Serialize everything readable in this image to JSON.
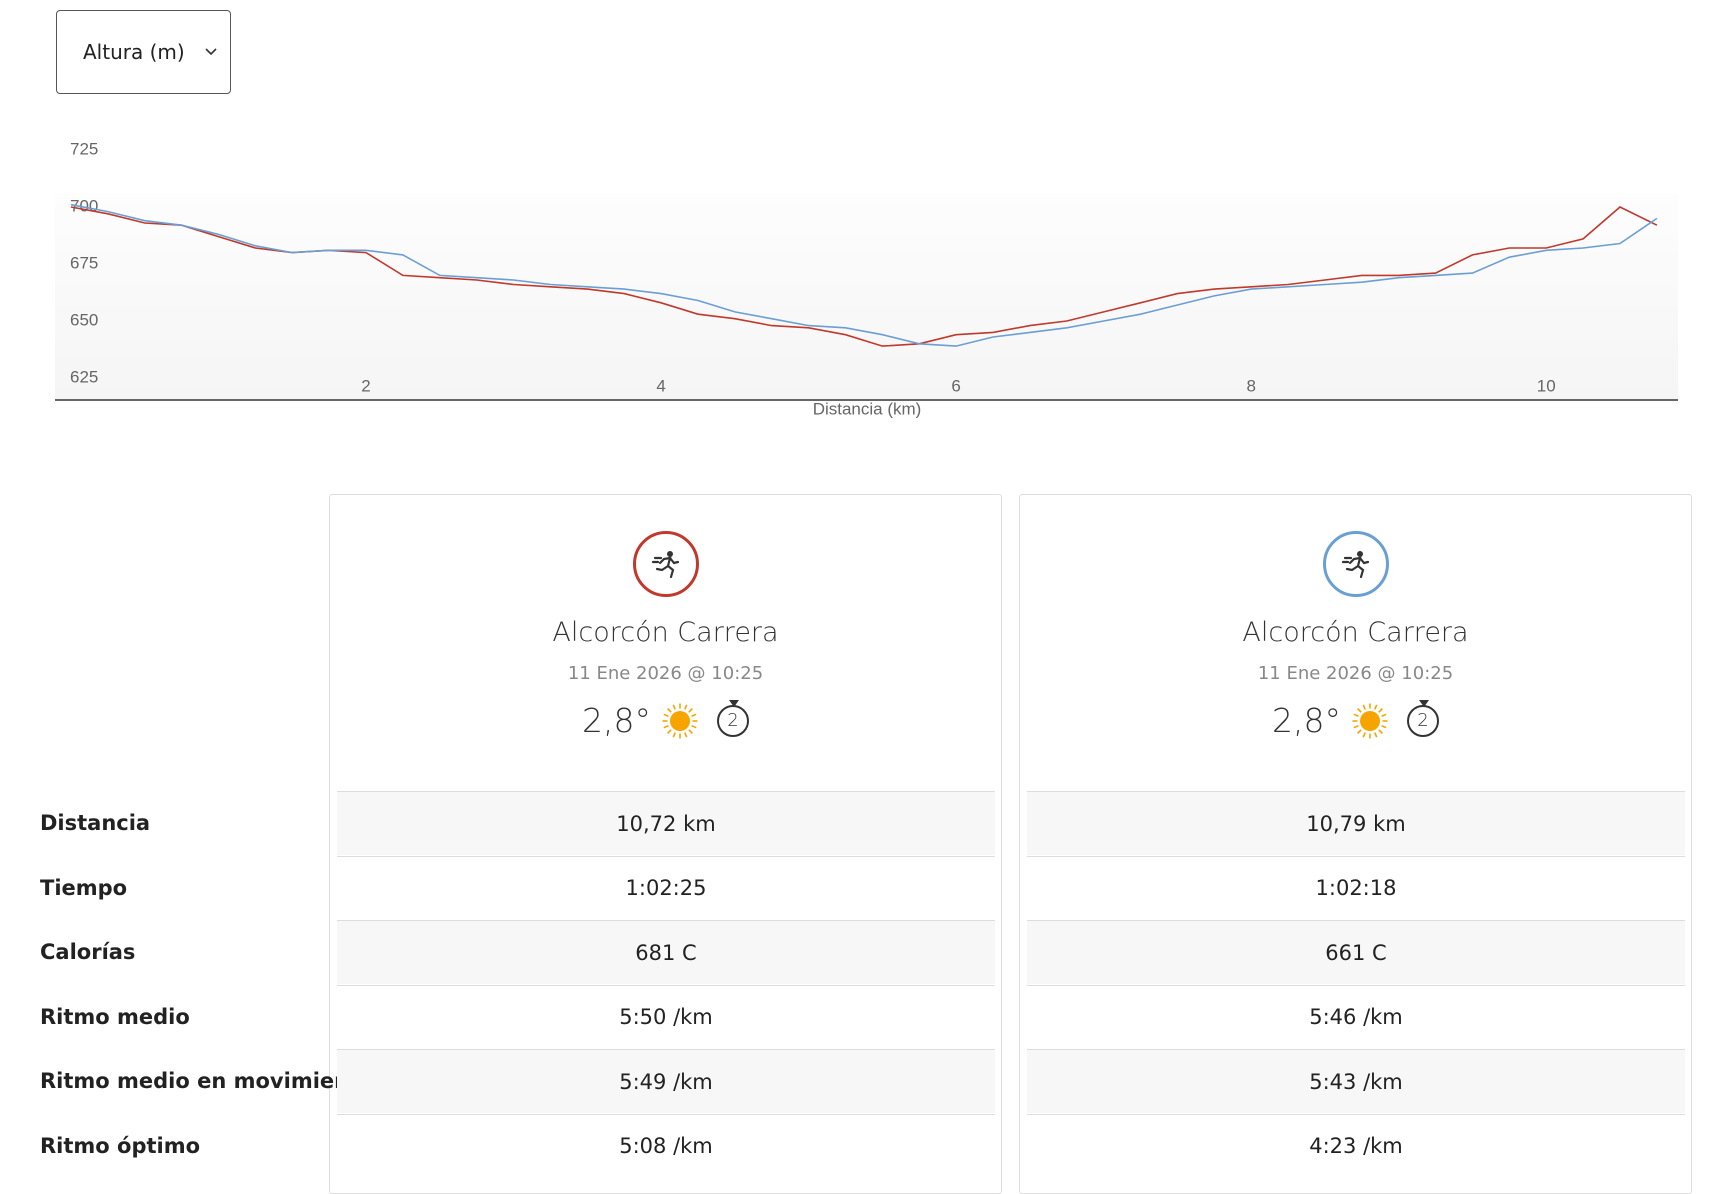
{
  "dropdown": {
    "label": "Altura (m)"
  },
  "chart_data": {
    "type": "line",
    "xlabel": "Distancia (km)",
    "x": [
      0,
      0.25,
      0.5,
      0.75,
      1,
      1.25,
      1.5,
      1.75,
      2,
      2.25,
      2.5,
      2.75,
      3,
      3.25,
      3.5,
      3.75,
      4,
      4.25,
      4.5,
      4.75,
      5,
      5.25,
      5.5,
      5.75,
      6,
      6.25,
      6.5,
      6.75,
      7,
      7.25,
      7.5,
      7.75,
      8,
      8.25,
      8.5,
      8.75,
      9,
      9.25,
      9.5,
      9.75,
      10,
      10.25,
      10.5,
      10.75
    ],
    "series": [
      {
        "color": "#c0392b",
        "values": [
          700,
          697,
          693,
          692,
          687,
          682,
          680,
          681,
          680,
          670,
          669,
          668,
          666,
          665,
          664,
          662,
          658,
          653,
          651,
          648,
          647,
          644,
          639,
          640,
          644,
          645,
          648,
          650,
          654,
          658,
          662,
          664,
          665,
          666,
          668,
          670,
          670,
          671,
          679,
          682,
          682,
          686,
          700,
          692
        ]
      },
      {
        "color": "#6a9fd4",
        "values": [
          701,
          698,
          694,
          692,
          688,
          683,
          680,
          681,
          681,
          679,
          670,
          669,
          668,
          666,
          665,
          664,
          662,
          659,
          654,
          651,
          648,
          647,
          644,
          640,
          639,
          643,
          645,
          647,
          650,
          653,
          657,
          661,
          664,
          665,
          666,
          667,
          669,
          670,
          671,
          678,
          681,
          682,
          684,
          695
        ]
      }
    ],
    "xlim": [
      0,
      10.9
    ],
    "ylim": [
      625,
      725
    ],
    "xticks": [
      2,
      4,
      6,
      8,
      10
    ],
    "yticks": [
      725,
      700,
      675,
      650,
      625
    ]
  },
  "cards": [
    {
      "title": "Alcorcón Carrera",
      "date": "11 Ene 2026 @ 10:25",
      "temperature": "2,8°",
      "laps": "2"
    },
    {
      "title": "Alcorcón Carrera",
      "date": "11 Ene 2026 @ 10:25",
      "temperature": "2,8°",
      "laps": "2"
    }
  ],
  "table": {
    "row_labels": [
      "Distancia",
      "Tiempo",
      "Calorías",
      "Ritmo medio",
      "Ritmo medio en movimiento",
      "Ritmo óptimo"
    ],
    "columns": [
      [
        "10,72 km",
        "1:02:25",
        "681 C",
        "5:50 /km",
        "5:49 /km",
        "5:08 /km"
      ],
      [
        "10,79 km",
        "1:02:18",
        "661 C",
        "5:46 /km",
        "5:43 /km",
        "4:23 /km"
      ]
    ]
  }
}
